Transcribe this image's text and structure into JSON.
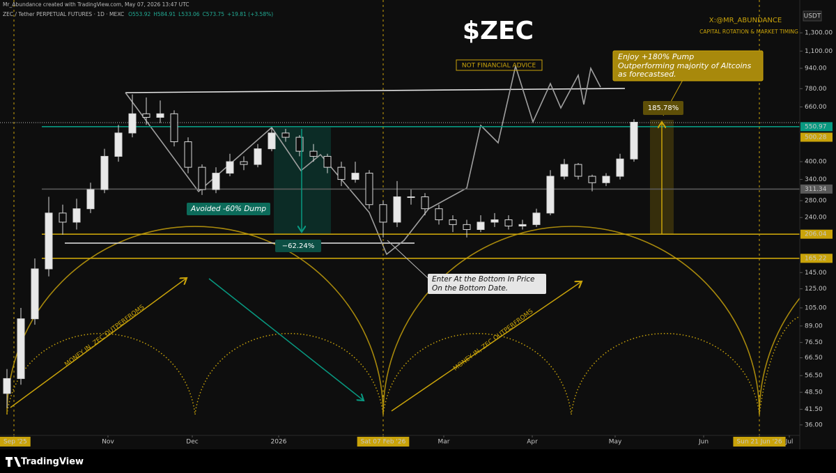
{
  "credit": "Mr_Abundance created with TradingView.com, May 07, 2026 13:47 UTC",
  "symbol": "ZEC / Tether PERPETUAL FUTURES · 1D · MEXC",
  "ohlc": [
    "O553.92",
    "H584.91",
    "L533.06",
    "C573.75",
    "+19.81 (+3.58%)"
  ],
  "brand": "TradingView",
  "chart_data": {
    "type": "candlestick",
    "title": "$ZEC",
    "subtitle": "NOT FINANCIAL ADVICE",
    "author": "X:@MR_ABUNDANCE",
    "tagline": "CAPITAL ROTATION & MARKET TIMING",
    "currency": "USDT",
    "annotations": {
      "pump_callout": [
        "Enjoy +180% Pump",
        "Outperforming majority of Altcoins",
        "as forecastsed."
      ],
      "pump_measure": "185.78%",
      "dump_callout": "Avoided -60% Dump",
      "dump_measure": "−62.24%",
      "bottom_callout": [
        "Enter At the Bottom In Price",
        "On the Bottom Date."
      ],
      "phase_label_1": "MONEY IN, ZEC OUTPERFROMS",
      "phase_label_2": "MONEY IN, ZEC OUTPERFROMS"
    },
    "log_scale": true,
    "up_color": "#e8e8e8",
    "down_color": "#0e0e0e",
    "wick_color": "#d8d8d8",
    "open": [
      48,
      55,
      95,
      150,
      250,
      230,
      260,
      310,
      420,
      520,
      620,
      600,
      620,
      480,
      380,
      310,
      360,
      400,
      390,
      450,
      520,
      500,
      440,
      420,
      380,
      340,
      360,
      270,
      230,
      290,
      290,
      260,
      235,
      225,
      215,
      230,
      235,
      222,
      225,
      250,
      350,
      390,
      350,
      330,
      350,
      410
    ],
    "high": [
      60,
      105,
      165,
      290,
      270,
      285,
      330,
      450,
      560,
      740,
      720,
      700,
      640,
      500,
      390,
      380,
      430,
      420,
      470,
      545,
      540,
      510,
      470,
      430,
      400,
      400,
      370,
      280,
      335,
      310,
      300,
      270,
      245,
      235,
      245,
      250,
      245,
      235,
      260,
      370,
      410,
      395,
      355,
      360,
      430,
      590
    ],
    "low": [
      42,
      52,
      90,
      140,
      205,
      215,
      250,
      300,
      400,
      500,
      560,
      570,
      460,
      360,
      295,
      300,
      350,
      370,
      380,
      440,
      480,
      420,
      400,
      360,
      320,
      330,
      260,
      200,
      220,
      270,
      245,
      225,
      210,
      200,
      210,
      220,
      215,
      215,
      220,
      245,
      340,
      340,
      305,
      320,
      340,
      400
    ],
    "close": [
      55,
      95,
      150,
      250,
      230,
      260,
      310,
      420,
      520,
      620,
      600,
      620,
      480,
      380,
      310,
      360,
      400,
      390,
      450,
      520,
      500,
      440,
      420,
      380,
      340,
      360,
      270,
      230,
      290,
      290,
      260,
      235,
      225,
      215,
      230,
      235,
      222,
      225,
      250,
      350,
      390,
      350,
      330,
      350,
      410,
      573.75
    ],
    "xlim": [
      -0.5,
      56.9
    ],
    "xticks": [
      {
        "value": 0.5,
        "label": "Sep '25",
        "highlight": true
      },
      {
        "value": 7.25,
        "label": "Nov"
      },
      {
        "value": 13.3,
        "label": "Dec"
      },
      {
        "value": 19.5,
        "label": "2026"
      },
      {
        "value": 27,
        "label": "Sat 07 Feb '26",
        "highlight": true
      },
      {
        "value": 31.35,
        "label": "Mar"
      },
      {
        "value": 37.7,
        "label": "Apr"
      },
      {
        "value": 43.65,
        "label": "May"
      },
      {
        "value": 50,
        "label": "Jun"
      },
      {
        "value": 54,
        "label": "Sun 21 Jun '26",
        "highlight": true
      },
      {
        "value": 56.15,
        "label": "Jul"
      }
    ],
    "ylim": [
      32.7,
      1450
    ],
    "yticks": [
      {
        "value": 1300,
        "label": "1,300.00"
      },
      {
        "value": 1100,
        "label": "1,100.00"
      },
      {
        "value": 940,
        "label": "940.00"
      },
      {
        "value": 780,
        "label": "780.00"
      },
      {
        "value": 660,
        "label": "660.00"
      },
      {
        "value": 400,
        "label": "400.00"
      },
      {
        "value": 340,
        "label": "340.00"
      },
      {
        "value": 280,
        "label": "280.00"
      },
      {
        "value": 240,
        "label": "240.00"
      },
      {
        "value": 145,
        "label": "145.00"
      },
      {
        "value": 125,
        "label": "125.00"
      },
      {
        "value": 105,
        "label": "105.00"
      },
      {
        "value": 89,
        "label": "89.00"
      },
      {
        "value": 76.5,
        "label": "76.50"
      },
      {
        "value": 66.5,
        "label": "66.50"
      },
      {
        "value": 56.5,
        "label": "56.50"
      },
      {
        "value": 48.5,
        "label": "48.50"
      },
      {
        "value": 41.5,
        "label": "41.50"
      },
      {
        "value": 36,
        "label": "36.00"
      }
    ],
    "price_lines": [
      {
        "value": 550.97,
        "color": "#089981",
        "text_color": "#ffffff",
        "line": true
      },
      {
        "value": 500.28,
        "color": "#c9a30a",
        "text_color": "#000000",
        "line": false
      },
      {
        "value": 311.34,
        "color": "#5a5a5a",
        "text_color": "#ffffff",
        "line": true
      },
      {
        "value": 206.04,
        "color": "#c9a30a",
        "text_color": "#000000",
        "line": true
      },
      {
        "value": 165.22,
        "color": "#c9a30a",
        "text_color": "#000000",
        "line": true
      }
    ]
  }
}
